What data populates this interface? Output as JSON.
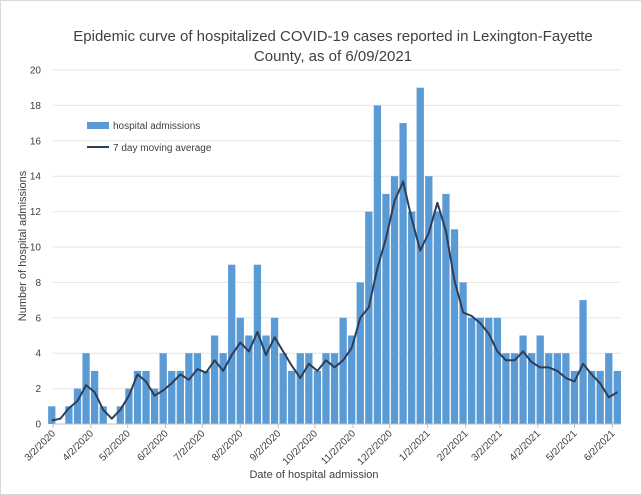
{
  "chart_data": {
    "type": "bar",
    "title_lines": [
      "Epidemic curve of hospitalized COVID-19 cases reported in Lexington-Fayette",
      "County, as of 6/09/2021"
    ],
    "xlabel": "Date of hospital admission",
    "ylabel": "Number of hospital admissions",
    "ylim": [
      0,
      20
    ],
    "yticks": [
      0,
      2,
      4,
      6,
      8,
      10,
      12,
      14,
      16,
      18,
      20
    ],
    "x_start": "2020-03-02",
    "x_end": "2021-06-09",
    "xtick_labels": [
      {
        "date": "2020-03-02",
        "label": "3/2/2020"
      },
      {
        "date": "2020-04-02",
        "label": "4/2/2020"
      },
      {
        "date": "2020-05-02",
        "label": "5/2/2020"
      },
      {
        "date": "2020-06-02",
        "label": "6/2/2020"
      },
      {
        "date": "2020-07-02",
        "label": "7/2/2020"
      },
      {
        "date": "2020-08-02",
        "label": "8/2/2020"
      },
      {
        "date": "2020-09-02",
        "label": "9/2/2020"
      },
      {
        "date": "2020-10-02",
        "label": "10/2/2020"
      },
      {
        "date": "2020-11-02",
        "label": "11/2/2020"
      },
      {
        "date": "2020-12-02",
        "label": "12/2/2020"
      },
      {
        "date": "2021-01-02",
        "label": "1/2/2021"
      },
      {
        "date": "2021-02-02",
        "label": "2/2/2021"
      },
      {
        "date": "2021-03-02",
        "label": "3/2/2021"
      },
      {
        "date": "2021-04-02",
        "label": "4/2/2021"
      },
      {
        "date": "2021-05-02",
        "label": "5/2/2021"
      },
      {
        "date": "2021-06-02",
        "label": "6/2/2021"
      }
    ],
    "legend": {
      "placement": "top-left",
      "bars_label": "hospital admissions",
      "line_label": "7 day moving average"
    },
    "bar_color": "#5b9bd5",
    "line_color": "#2f3e57",
    "series": [
      {
        "name": "hospital admissions",
        "kind": "bar",
        "x": [
          "2020-03-01",
          "2020-03-08",
          "2020-03-15",
          "2020-03-22",
          "2020-03-29",
          "2020-04-05",
          "2020-04-12",
          "2020-04-19",
          "2020-04-26",
          "2020-05-03",
          "2020-05-10",
          "2020-05-17",
          "2020-05-24",
          "2020-05-31",
          "2020-06-07",
          "2020-06-14",
          "2020-06-21",
          "2020-06-28",
          "2020-07-05",
          "2020-07-12",
          "2020-07-19",
          "2020-07-26",
          "2020-08-02",
          "2020-08-09",
          "2020-08-16",
          "2020-08-23",
          "2020-08-30",
          "2020-09-06",
          "2020-09-13",
          "2020-09-20",
          "2020-09-27",
          "2020-10-04",
          "2020-10-11",
          "2020-10-18",
          "2020-10-25",
          "2020-11-01",
          "2020-11-08",
          "2020-11-15",
          "2020-11-22",
          "2020-11-29",
          "2020-12-06",
          "2020-12-13",
          "2020-12-20",
          "2020-12-27",
          "2021-01-03",
          "2021-01-10",
          "2021-01-17",
          "2021-01-24",
          "2021-01-31",
          "2021-02-07",
          "2021-02-14",
          "2021-02-21",
          "2021-02-28",
          "2021-03-07",
          "2021-03-14",
          "2021-03-21",
          "2021-03-28",
          "2021-04-04",
          "2021-04-11",
          "2021-04-18",
          "2021-04-25",
          "2021-05-02",
          "2021-05-09",
          "2021-05-16",
          "2021-05-23",
          "2021-05-30",
          "2021-06-06"
        ],
        "values": [
          1,
          0,
          1,
          2,
          4,
          3,
          1,
          0,
          1,
          2,
          3,
          3,
          2,
          4,
          3,
          3,
          4,
          4,
          3,
          5,
          4,
          9,
          6,
          5,
          9,
          5,
          6,
          4,
          3,
          4,
          4,
          3,
          4,
          4,
          6,
          5,
          8,
          12,
          18,
          13,
          14,
          17,
          12,
          19,
          14,
          12,
          13,
          11,
          8,
          6,
          6,
          6,
          6,
          4,
          4,
          5,
          4,
          5,
          4,
          4,
          4,
          3,
          7,
          3,
          3,
          4,
          3
        ]
      },
      {
        "name": "7 day moving average",
        "kind": "line",
        "x": [
          "2020-03-01",
          "2020-03-08",
          "2020-03-15",
          "2020-03-22",
          "2020-03-29",
          "2020-04-05",
          "2020-04-12",
          "2020-04-19",
          "2020-04-26",
          "2020-05-03",
          "2020-05-10",
          "2020-05-17",
          "2020-05-24",
          "2020-05-31",
          "2020-06-07",
          "2020-06-14",
          "2020-06-21",
          "2020-06-28",
          "2020-07-05",
          "2020-07-12",
          "2020-07-19",
          "2020-07-26",
          "2020-08-02",
          "2020-08-09",
          "2020-08-16",
          "2020-08-23",
          "2020-08-30",
          "2020-09-06",
          "2020-09-13",
          "2020-09-20",
          "2020-09-27",
          "2020-10-04",
          "2020-10-11",
          "2020-10-18",
          "2020-10-25",
          "2020-11-01",
          "2020-11-08",
          "2020-11-15",
          "2020-11-22",
          "2020-11-29",
          "2020-12-06",
          "2020-12-13",
          "2020-12-20",
          "2020-12-27",
          "2021-01-03",
          "2021-01-10",
          "2021-01-17",
          "2021-01-24",
          "2021-01-31",
          "2021-02-07",
          "2021-02-14",
          "2021-02-21",
          "2021-02-28",
          "2021-03-07",
          "2021-03-14",
          "2021-03-21",
          "2021-03-28",
          "2021-04-04",
          "2021-04-11",
          "2021-04-18",
          "2021-04-25",
          "2021-05-02",
          "2021-05-09",
          "2021-05-16",
          "2021-05-23",
          "2021-05-30",
          "2021-06-06"
        ],
        "values": [
          0.2,
          0.3,
          0.9,
          1.3,
          2.2,
          1.8,
          0.8,
          0.3,
          0.8,
          1.6,
          2.8,
          2.4,
          1.6,
          1.9,
          2.3,
          2.8,
          2.5,
          3.1,
          2.9,
          3.6,
          3.0,
          3.9,
          4.6,
          4.1,
          5.2,
          3.9,
          4.9,
          4.1,
          3.3,
          2.6,
          3.4,
          3.0,
          3.6,
          3.2,
          3.6,
          4.3,
          6.0,
          6.6,
          8.8,
          10.5,
          12.6,
          13.7,
          11.6,
          9.8,
          10.8,
          12.5,
          10.9,
          8.1,
          6.3,
          6.1,
          5.7,
          5.1,
          4.1,
          3.6,
          3.6,
          4.1,
          3.5,
          3.2,
          3.2,
          3.0,
          2.6,
          2.4,
          3.4,
          2.8,
          2.3,
          1.5,
          1.8
        ]
      }
    ]
  }
}
